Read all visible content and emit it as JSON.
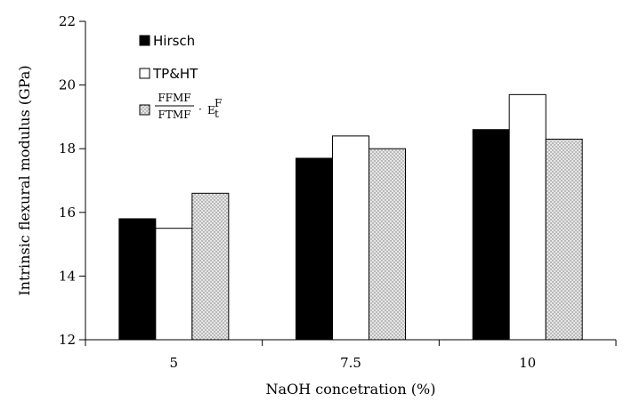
{
  "chart_data": {
    "type": "bar",
    "categories": [
      "5",
      "7.5",
      "10"
    ],
    "series": [
      {
        "name": "Hirsch",
        "values": [
          15.8,
          17.7,
          18.6
        ],
        "color": "#000000"
      },
      {
        "name": "TP&HT",
        "values": [
          15.5,
          18.4,
          19.7
        ],
        "color": "#ffffff"
      },
      {
        "name": "FFMF/FTMF · E_t^F",
        "values": [
          16.6,
          18.0,
          18.3
        ],
        "color": "#d9d9d9"
      }
    ],
    "legend": {
      "hirsch": "Hirsch",
      "tpht": "TP&HT",
      "ratio_num": "FFMF",
      "ratio_den": "FTMF",
      "dot": "·",
      "E": "E",
      "sub": "t",
      "sup": "F"
    },
    "xlabel": "NaOH concetration (%)",
    "ylabel": "Intrinsic flexural modulus (GPa)",
    "ylim": [
      12,
      22
    ],
    "yticks": [
      "12",
      "14",
      "16",
      "18",
      "20",
      "22"
    ],
    "grid": false,
    "legend_position": "top-left"
  }
}
